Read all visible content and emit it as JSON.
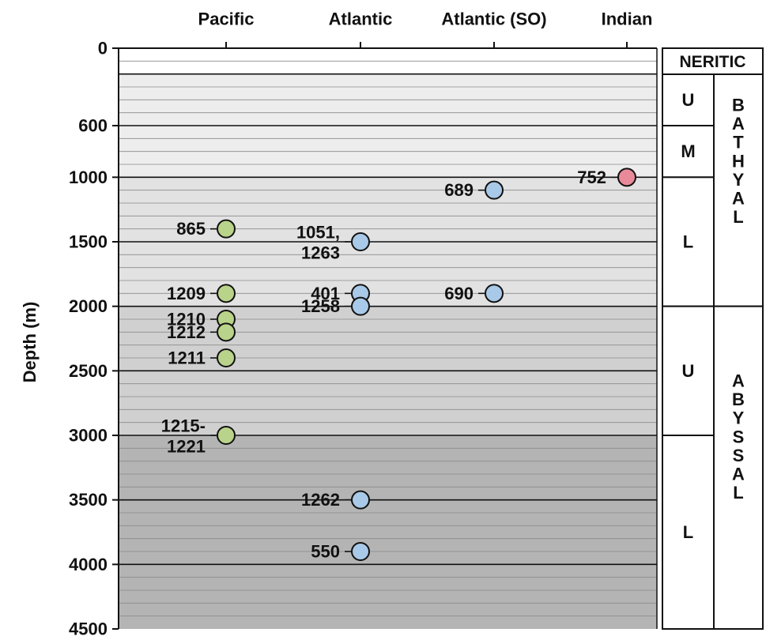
{
  "chart_data": {
    "type": "scatter",
    "title": "",
    "xlabel": "",
    "ylabel": "Depth (m)",
    "ylim": [
      0,
      4500
    ],
    "y_axis_inverted": true,
    "y_ticks": [
      0,
      600,
      1000,
      1500,
      2000,
      2500,
      3000,
      3500,
      4000,
      4500
    ],
    "categories": [
      "Pacific",
      "Atlantic",
      "Atlantic (SO)",
      "Indian"
    ],
    "background_bands": [
      {
        "from": 0,
        "to": 200,
        "color": "#ffffff"
      },
      {
        "from": 200,
        "to": 1000,
        "color": "#ededed"
      },
      {
        "from": 1000,
        "to": 2000,
        "color": "#e2e2e2"
      },
      {
        "from": 2000,
        "to": 3000,
        "color": "#d0d0d0"
      },
      {
        "from": 3000,
        "to": 4500,
        "color": "#b4b4b4"
      }
    ],
    "series": [
      {
        "category": "Pacific",
        "color": "#b9d38a",
        "points": [
          {
            "label": "865",
            "depth": 1400
          },
          {
            "label": "1209",
            "depth": 1900
          },
          {
            "label": "1210",
            "depth": 2100
          },
          {
            "label": "1212",
            "depth": 2200
          },
          {
            "label": "1211",
            "depth": 2400
          },
          {
            "label": "1215-\n1221",
            "depth": 3000
          }
        ]
      },
      {
        "category": "Atlantic",
        "color": "#a9c9e8",
        "points": [
          {
            "label": "1051,\n1263",
            "depth": 1500
          },
          {
            "label": "401",
            "depth": 1900
          },
          {
            "label": "1258",
            "depth": 2000
          },
          {
            "label": "1262",
            "depth": 3500
          },
          {
            "label": "550",
            "depth": 3900
          }
        ]
      },
      {
        "category": "Atlantic (SO)",
        "color": "#a9c9e8",
        "points": [
          {
            "label": "689",
            "depth": 1100
          },
          {
            "label": "690",
            "depth": 1900
          }
        ]
      },
      {
        "category": "Indian",
        "color": "#e98a9a",
        "points": [
          {
            "label": "752",
            "depth": 1000
          }
        ]
      }
    ],
    "zones": {
      "header": "NERITIC",
      "bathyal_letters": [
        "B",
        "A",
        "T",
        "H",
        "Y",
        "A",
        "L"
      ],
      "abyssal_letters": [
        "A",
        "B",
        "Y",
        "S",
        "S",
        "A",
        "L"
      ],
      "subzones": [
        {
          "label": "U",
          "from": 200,
          "to": 600
        },
        {
          "label": "M",
          "from": 600,
          "to": 1000
        },
        {
          "label": "L",
          "from": 1000,
          "to": 2000
        },
        {
          "label": "U",
          "from": 2000,
          "to": 3000
        },
        {
          "label": "L",
          "from": 3000,
          "to": 4500
        }
      ],
      "neritic_range": [
        0,
        200
      ],
      "bathyal_range": [
        200,
        2000
      ],
      "abyssal_range": [
        2000,
        4500
      ]
    }
  }
}
